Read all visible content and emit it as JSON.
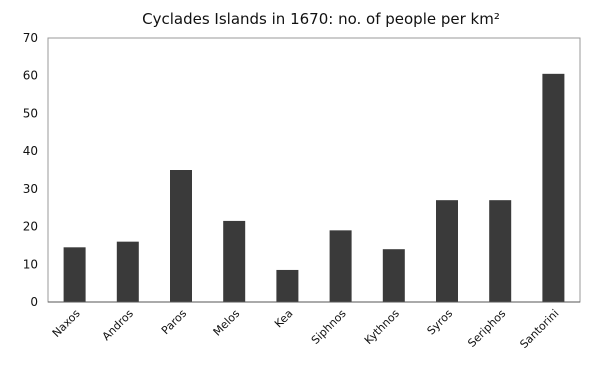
{
  "chart_data": {
    "type": "bar",
    "title": "Cyclades Islands in 1670: no. of people per km²",
    "xlabel": "",
    "ylabel": "",
    "ylim": [
      0,
      70
    ],
    "yticks": [
      0,
      10,
      20,
      30,
      40,
      50,
      60,
      70
    ],
    "grid": false,
    "legend": "none",
    "bar_color": "#3a3a3a",
    "categories": [
      "Naxos",
      "Andros",
      "Paros",
      "Melos",
      "Kea",
      "Siphnos",
      "Kythnos",
      "Syros",
      "Seriphos",
      "Santorini"
    ],
    "values": [
      14.5,
      16,
      35,
      21.5,
      8.5,
      19,
      14,
      27,
      27,
      60.5
    ]
  }
}
